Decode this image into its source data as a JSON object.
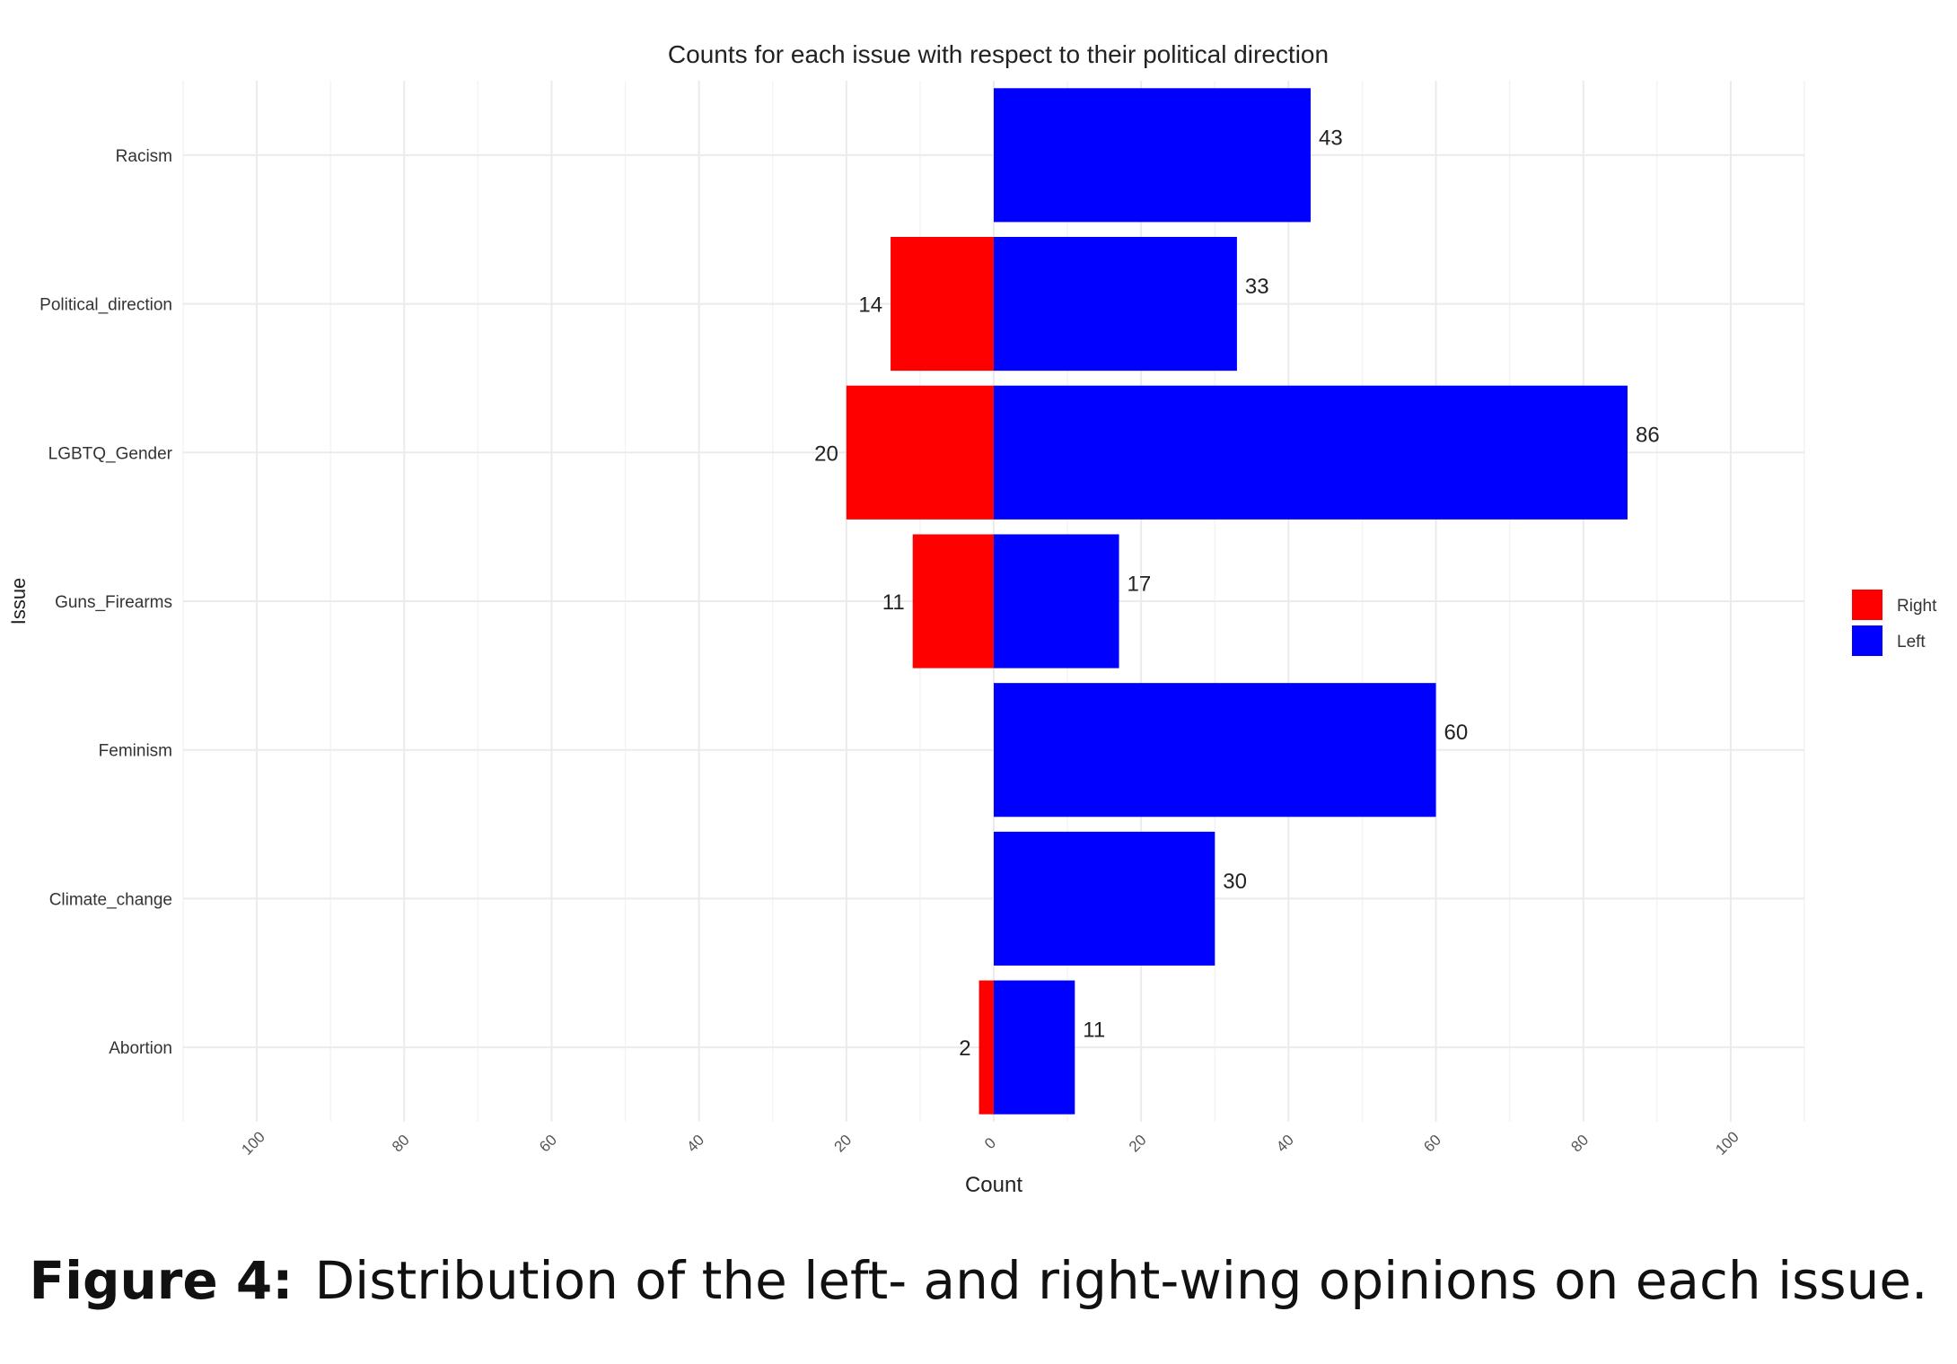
{
  "chart_data": {
    "type": "bar",
    "orientation": "horizontal",
    "title": "Counts for each issue with respect to their political direction",
    "xlabel": "Count",
    "ylabel": "Issue",
    "categories": [
      "Racism",
      "Political_direction",
      "LGBTQ_Gender",
      "Guns_Firearms",
      "Feminism",
      "Climate_change",
      "Abortion"
    ],
    "series": [
      {
        "name": "Right",
        "color": "#ff0000",
        "direction": "negative",
        "values": [
          0,
          14,
          20,
          11,
          0,
          0,
          2
        ]
      },
      {
        "name": "Left",
        "color": "#0000ff",
        "direction": "positive",
        "values": [
          43,
          33,
          86,
          17,
          60,
          30,
          11
        ]
      }
    ],
    "xlim": [
      -110,
      110
    ],
    "x_ticks": [
      -100,
      -80,
      -60,
      -40,
      -20,
      0,
      20,
      40,
      60,
      80,
      100
    ],
    "x_tick_labels": [
      "100",
      "80",
      "60",
      "40",
      "20",
      "0",
      "20",
      "40",
      "60",
      "80",
      "100"
    ],
    "grid": true,
    "legend_position": "right"
  },
  "caption": {
    "lead": "Figure 4:",
    "text": "Distribution of the left- and right-wing opinions on each issue."
  }
}
